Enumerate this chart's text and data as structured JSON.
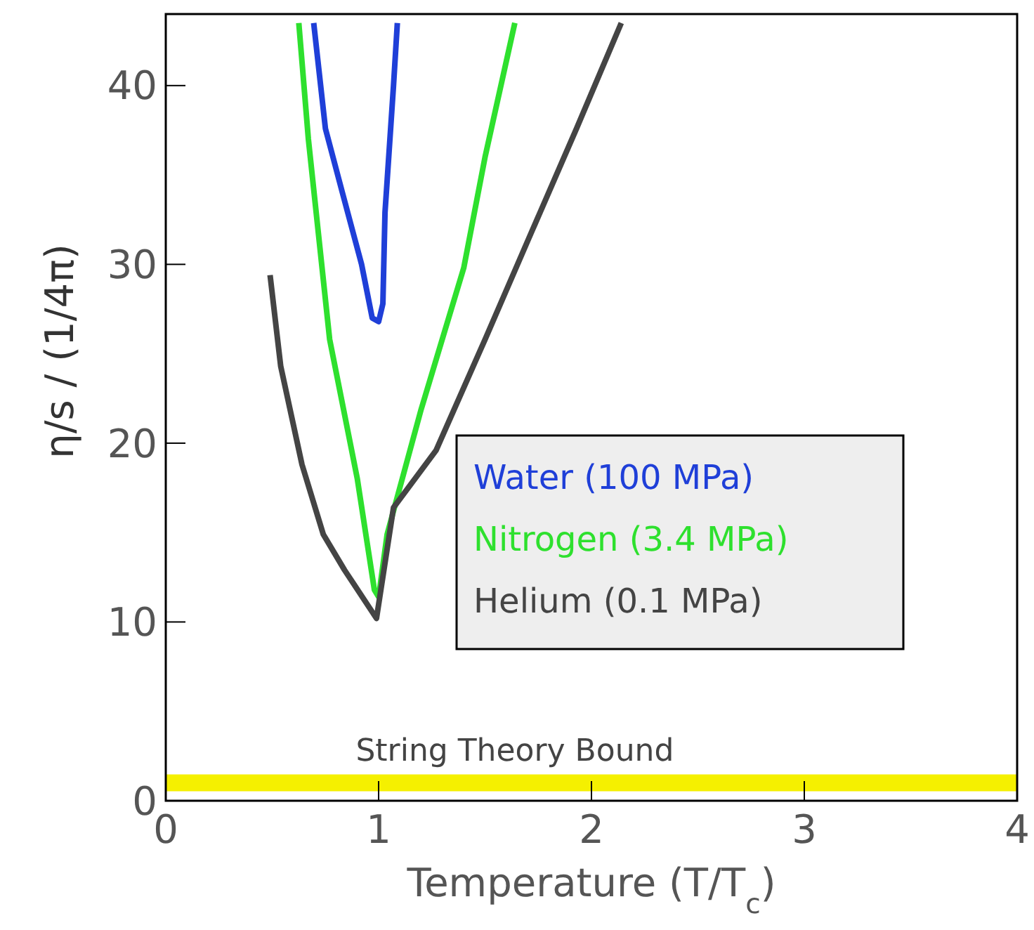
{
  "chart_data": {
    "type": "line",
    "xlabel": "Temperature (T/T$_{c}$)",
    "ylabel": "η/s / (1/4π)",
    "xlim": [
      0,
      4
    ],
    "ylim": [
      0,
      44
    ],
    "xticks": [
      0,
      1,
      2,
      3,
      4
    ],
    "yticks": [
      0,
      10,
      20,
      30,
      40
    ],
    "grid": false,
    "legend": "right",
    "marker": "none",
    "line_style": "solid",
    "series": [
      {
        "name": "Water (100 MPa)",
        "color": "#1f3fd8",
        "x": [
          0.695,
          0.75,
          0.83,
          0.92,
          0.97,
          1.0,
          1.02,
          1.03,
          1.07,
          1.088
        ],
        "values": [
          43.5,
          37.6,
          34,
          30,
          27,
          26.8,
          27.8,
          32.9,
          40,
          43.5
        ]
      },
      {
        "name": "Nitrogen (3.4 MPa)",
        "color": "#2ee02e",
        "x": [
          0.625,
          0.67,
          0.77,
          0.9,
          0.98,
          1.0,
          1.04,
          1.2,
          1.4,
          1.5,
          1.64
        ],
        "values": [
          43.5,
          37,
          25.8,
          18,
          11.8,
          11.4,
          14.9,
          21.9,
          29.8,
          36,
          43.5
        ]
      },
      {
        "name": "Helium (0.1 MPa)",
        "color": "#444444",
        "x": [
          0.49,
          0.54,
          0.64,
          0.74,
          0.84,
          0.99,
          1.07,
          1.27,
          1.5,
          1.7,
          1.93,
          2.14
        ],
        "values": [
          29.4,
          24.3,
          18.8,
          14.9,
          12.9,
          10.2,
          16.4,
          19.6,
          25.8,
          31.3,
          37.6,
          43.5
        ]
      }
    ],
    "ref_lines": [
      {
        "axis": "y",
        "value": 1,
        "label": "String Theory Bound",
        "color": "#f5f000"
      }
    ]
  }
}
